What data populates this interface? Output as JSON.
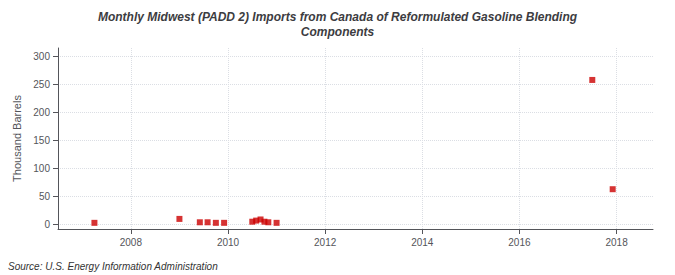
{
  "chart_data": {
    "type": "scatter",
    "title": "Monthly Midwest (PADD 2) Imports from Canada of Reformulated Gasoline Blending\nComponents",
    "ylabel": "Thousand Barrels",
    "source": "Source: U.S. Energy Information Administration",
    "x": [
      2007.25,
      2009.0,
      2009.42,
      2009.58,
      2009.75,
      2009.92,
      2010.5,
      2010.58,
      2010.67,
      2010.75,
      2010.83,
      2011.0,
      2017.5,
      2017.92
    ],
    "values": [
      3.0,
      10.0,
      4.0,
      4.0,
      3.0,
      3.0,
      5.0,
      7.0,
      9.0,
      5.0,
      4.0,
      3.0,
      258.0,
      63.0
    ],
    "color": "#cc0000",
    "marker": "square",
    "xlim": [
      2006.5,
      2018.75
    ],
    "ylim": [
      -8,
      315
    ],
    "xticks": [
      2008,
      2010,
      2012,
      2014,
      2016,
      2018
    ],
    "yticks": [
      0,
      50,
      100,
      150,
      200,
      250,
      300
    ],
    "grid": true
  }
}
